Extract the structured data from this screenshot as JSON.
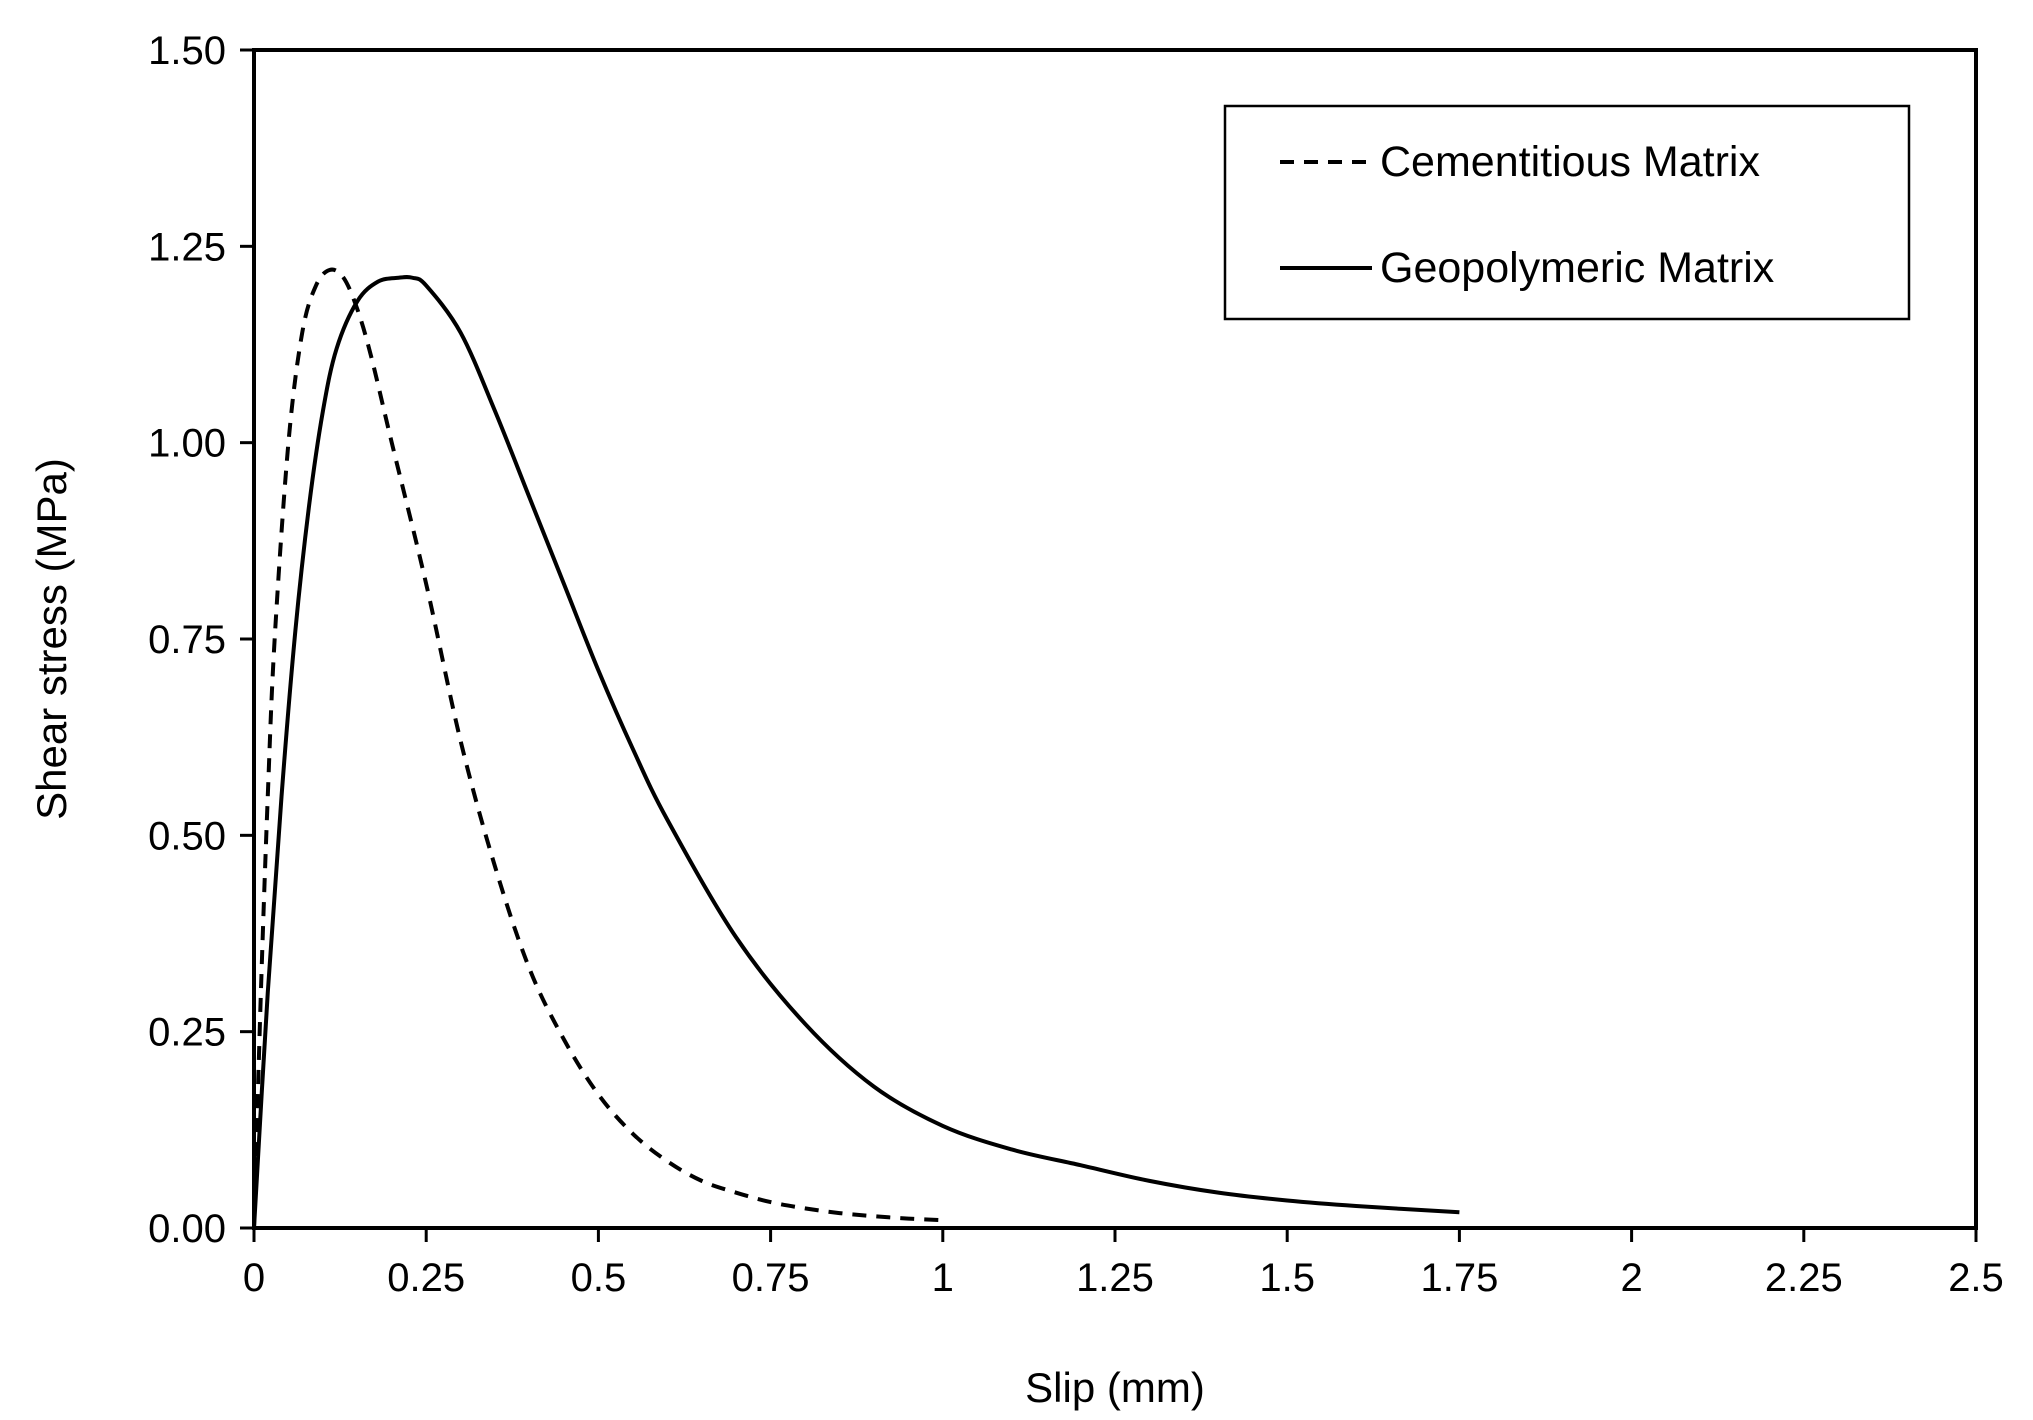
{
  "chart_data": {
    "type": "line",
    "title": "",
    "xlabel": "Slip (mm)",
    "ylabel": "Shear stress (MPa)",
    "xlim": [
      0,
      2.5
    ],
    "ylim": [
      0,
      1.5
    ],
    "xticks": [
      "0",
      "0.25",
      "0.5",
      "0.75",
      "1",
      "1.25",
      "1.5",
      "1.75",
      "2",
      "2.25",
      "2.5"
    ],
    "yticks": [
      "0.00",
      "0.25",
      "0.50",
      "0.75",
      "1.00",
      "1.25",
      "1.50"
    ],
    "grid": false,
    "legend_position": "top-right",
    "series": [
      {
        "name": "Cementitious Matrix",
        "style": "dashed",
        "color": "#000000",
        "x": [
          0,
          0.01,
          0.02,
          0.03,
          0.05,
          0.07,
          0.09,
          0.11,
          0.13,
          0.15,
          0.17,
          0.2,
          0.25,
          0.3,
          0.35,
          0.4,
          0.45,
          0.5,
          0.55,
          0.6,
          0.65,
          0.7,
          0.75,
          0.8,
          0.85,
          0.9,
          0.95,
          1.0
        ],
        "y": [
          0,
          0.3,
          0.55,
          0.75,
          1.0,
          1.14,
          1.2,
          1.22,
          1.21,
          1.17,
          1.11,
          1.0,
          0.82,
          0.62,
          0.46,
          0.33,
          0.24,
          0.17,
          0.12,
          0.085,
          0.06,
          0.045,
          0.033,
          0.025,
          0.019,
          0.015,
          0.012,
          0.01
        ]
      },
      {
        "name": "Geopolymeric Matrix",
        "style": "solid",
        "color": "#000000",
        "x": [
          0,
          0.02,
          0.04,
          0.06,
          0.08,
          0.1,
          0.12,
          0.15,
          0.18,
          0.21,
          0.23,
          0.25,
          0.3,
          0.35,
          0.4,
          0.45,
          0.5,
          0.55,
          0.6,
          0.7,
          0.8,
          0.9,
          1.0,
          1.1,
          1.2,
          1.3,
          1.4,
          1.5,
          1.6,
          1.75
        ],
        "y": [
          0,
          0.3,
          0.55,
          0.76,
          0.92,
          1.04,
          1.12,
          1.18,
          1.205,
          1.21,
          1.21,
          1.2,
          1.14,
          1.04,
          0.93,
          0.82,
          0.71,
          0.61,
          0.52,
          0.37,
          0.26,
          0.18,
          0.13,
          0.1,
          0.08,
          0.06,
          0.045,
          0.035,
          0.028,
          0.02
        ]
      }
    ]
  }
}
